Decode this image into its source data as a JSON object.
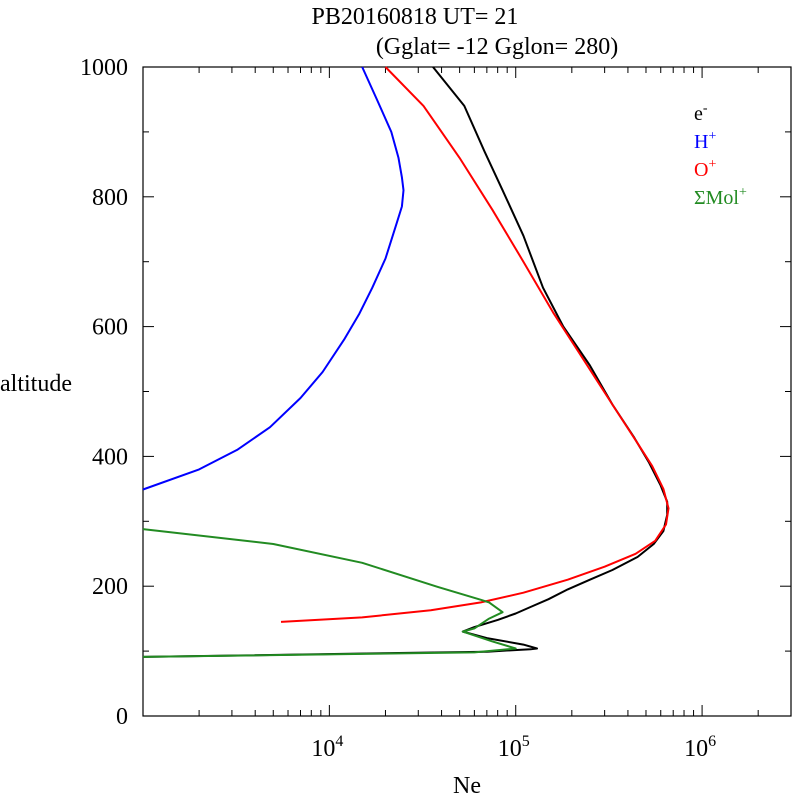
{
  "chart_data": {
    "type": "line",
    "title": "PB20160818   UT=  21",
    "subtitle": "(Gglat= -12   Gglon=  280)",
    "xlabel": "Ne",
    "ylabel": "altitude",
    "x_scale": "log",
    "xlim": [
      1000,
      3000000
    ],
    "ylim": [
      0,
      1000
    ],
    "x_ticks": [
      {
        "base": "10",
        "exp": "4",
        "value": 10000
      },
      {
        "base": "10",
        "exp": "5",
        "value": 100000
      },
      {
        "base": "10",
        "exp": "6",
        "value": 1000000
      }
    ],
    "y_ticks": [
      "0",
      "200",
      "400",
      "600",
      "800",
      "1000"
    ],
    "legend_position": "top-right",
    "series": [
      {
        "name": "e",
        "sup": "-",
        "color": "#000000",
        "points": [
          [
            1000,
            91
          ],
          [
            70000,
            99
          ],
          [
            120000,
            103
          ],
          [
            130000,
            104
          ],
          [
            110000,
            110
          ],
          [
            70000,
            120
          ],
          [
            52000,
            130
          ],
          [
            60000,
            137
          ],
          [
            80000,
            148
          ],
          [
            100000,
            158
          ],
          [
            120000,
            168
          ],
          [
            150000,
            180
          ],
          [
            190000,
            195
          ],
          [
            250000,
            210
          ],
          [
            330000,
            225
          ],
          [
            450000,
            245
          ],
          [
            550000,
            265
          ],
          [
            620000,
            285
          ],
          [
            650000,
            310
          ],
          [
            650000,
            330
          ],
          [
            600000,
            355
          ],
          [
            520000,
            390
          ],
          [
            430000,
            430
          ],
          [
            330000,
            480
          ],
          [
            250000,
            540
          ],
          [
            180000,
            600
          ],
          [
            140000,
            660
          ],
          [
            110000,
            740
          ],
          [
            85000,
            810
          ],
          [
            68000,
            870
          ],
          [
            53000,
            940
          ],
          [
            36000,
            1000
          ]
        ]
      },
      {
        "name": "H",
        "sup": "+",
        "color": "#0000ff",
        "points": [
          [
            1000,
            349
          ],
          [
            2000,
            380
          ],
          [
            3200,
            410
          ],
          [
            4800,
            445
          ],
          [
            7000,
            490
          ],
          [
            9200,
            530
          ],
          [
            12000,
            580
          ],
          [
            14500,
            620
          ],
          [
            17000,
            660
          ],
          [
            20000,
            705
          ],
          [
            23000,
            760
          ],
          [
            24500,
            785
          ],
          [
            25000,
            810
          ],
          [
            24500,
            830
          ],
          [
            23500,
            860
          ],
          [
            21500,
            900
          ],
          [
            18000,
            950
          ],
          [
            15000,
            1000
          ]
        ]
      },
      {
        "name": "O",
        "sup": "+",
        "color": "#ff0000",
        "points": [
          [
            5500,
            145
          ],
          [
            15000,
            152
          ],
          [
            35000,
            163
          ],
          [
            65000,
            175
          ],
          [
            110000,
            190
          ],
          [
            190000,
            210
          ],
          [
            300000,
            230
          ],
          [
            440000,
            250
          ],
          [
            560000,
            270
          ],
          [
            640000,
            295
          ],
          [
            660000,
            320
          ],
          [
            620000,
            350
          ],
          [
            540000,
            385
          ],
          [
            440000,
            425
          ],
          [
            330000,
            480
          ],
          [
            230000,
            550
          ],
          [
            160000,
            620
          ],
          [
            110000,
            700
          ],
          [
            75000,
            780
          ],
          [
            50000,
            860
          ],
          [
            32000,
            940
          ],
          [
            20000,
            1000
          ]
        ]
      },
      {
        "name": "ΣMol",
        "sup": "+",
        "color": "#228b22",
        "points": [
          [
            1000,
            288
          ],
          [
            5000,
            265
          ],
          [
            15000,
            236
          ],
          [
            38000,
            199
          ],
          [
            65000,
            179
          ],
          [
            72000,
            175
          ],
          [
            85000,
            160
          ],
          [
            72000,
            150
          ],
          [
            60000,
            135
          ],
          [
            52000,
            130
          ],
          [
            75000,
            115
          ],
          [
            100000,
            104
          ],
          [
            60000,
            98
          ],
          [
            1000,
            91
          ]
        ]
      }
    ]
  }
}
